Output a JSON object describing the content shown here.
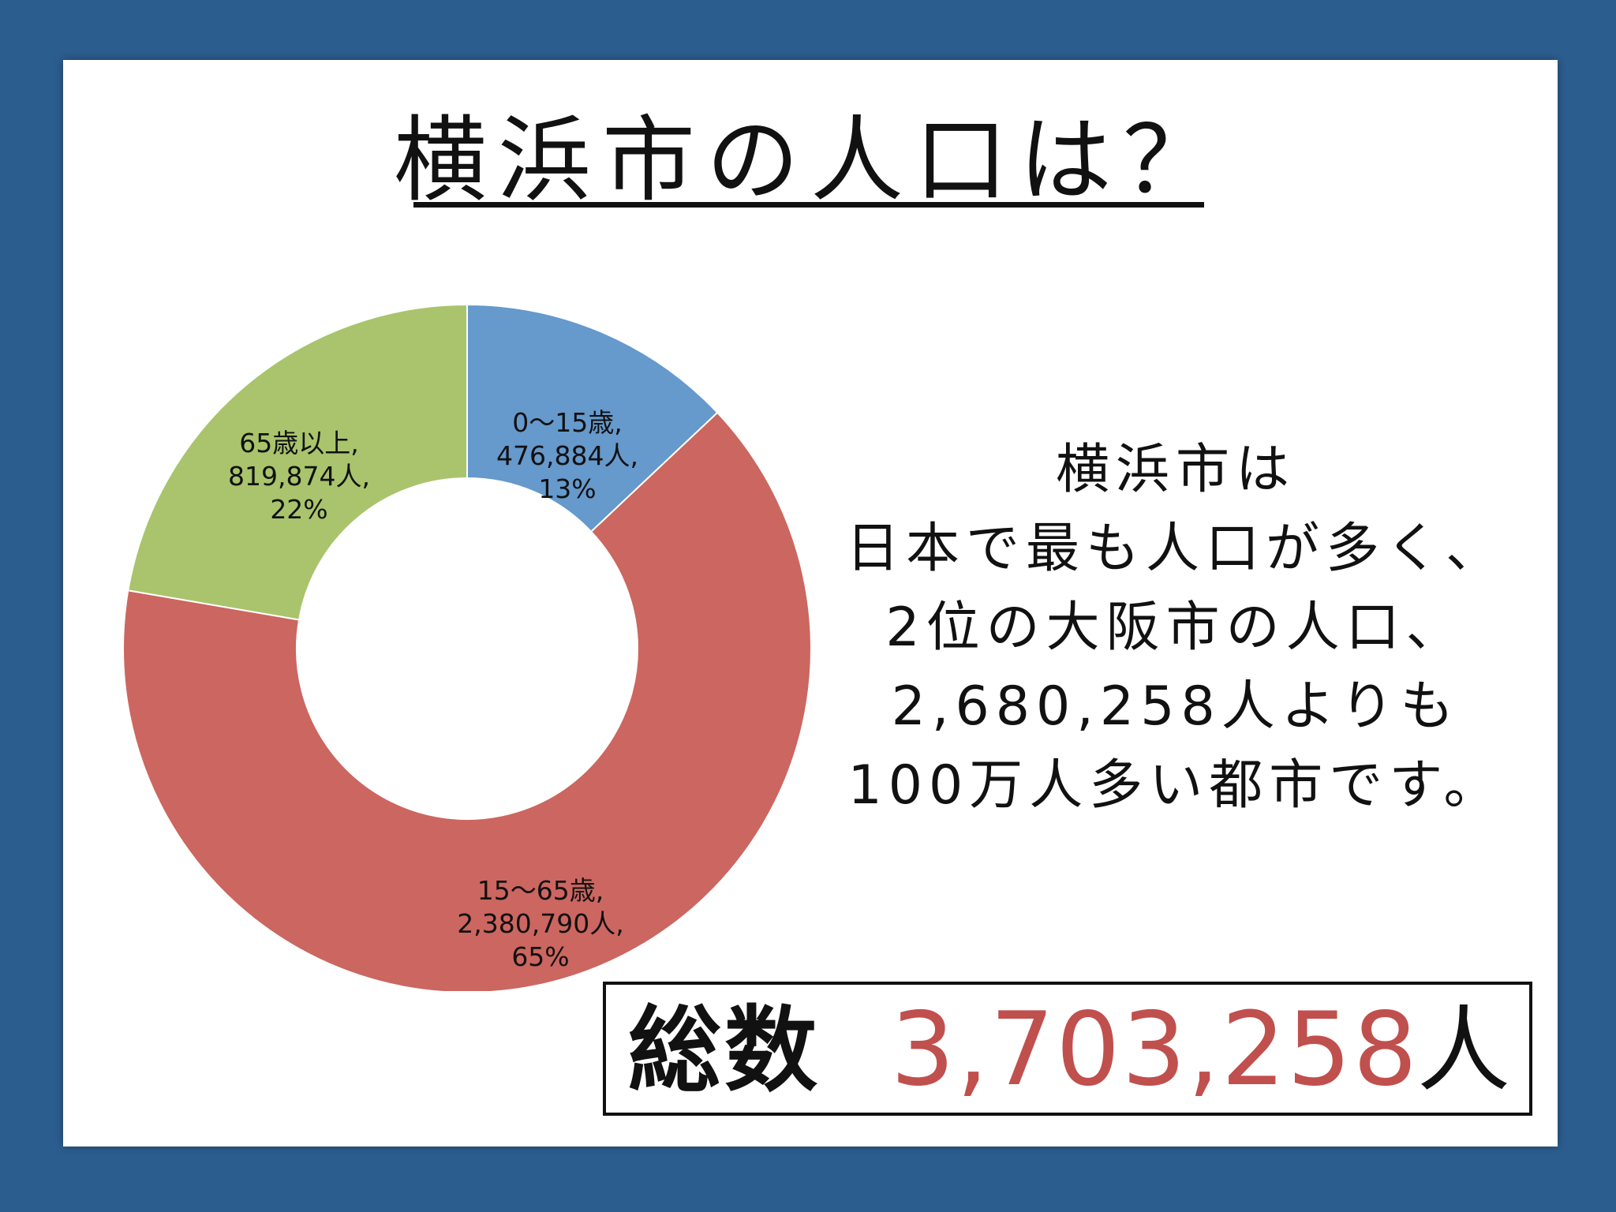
{
  "title": "横浜市の人口は？",
  "description": [
    "横浜市は",
    "日本で最も人口が多く、",
    "2位の大阪市の人口、",
    " 2,680,258人よりも",
    "100万人多い都市です。"
  ],
  "total": {
    "label": "総数",
    "value": "3,703,258",
    "unit": "人"
  },
  "chart_data": {
    "type": "pie",
    "variant": "donut",
    "title": "",
    "slices": [
      {
        "name": "0～15歳",
        "value": 476884,
        "value_label": "476,884人",
        "percent_label": "13%",
        "color": "#6699cc"
      },
      {
        "name": "15～65歳",
        "value": 2380790,
        "value_label": "2,380,790人",
        "percent_label": "65%",
        "color": "#cc6660"
      },
      {
        "name": "65歳以上",
        "value": 819874,
        "value_label": "819,874人",
        "percent_label": "22%",
        "color": "#a9c46c"
      }
    ]
  },
  "colors": {
    "background": "#2c5d8f",
    "slide": "#ffffff",
    "accent_red": "#c0504d"
  }
}
